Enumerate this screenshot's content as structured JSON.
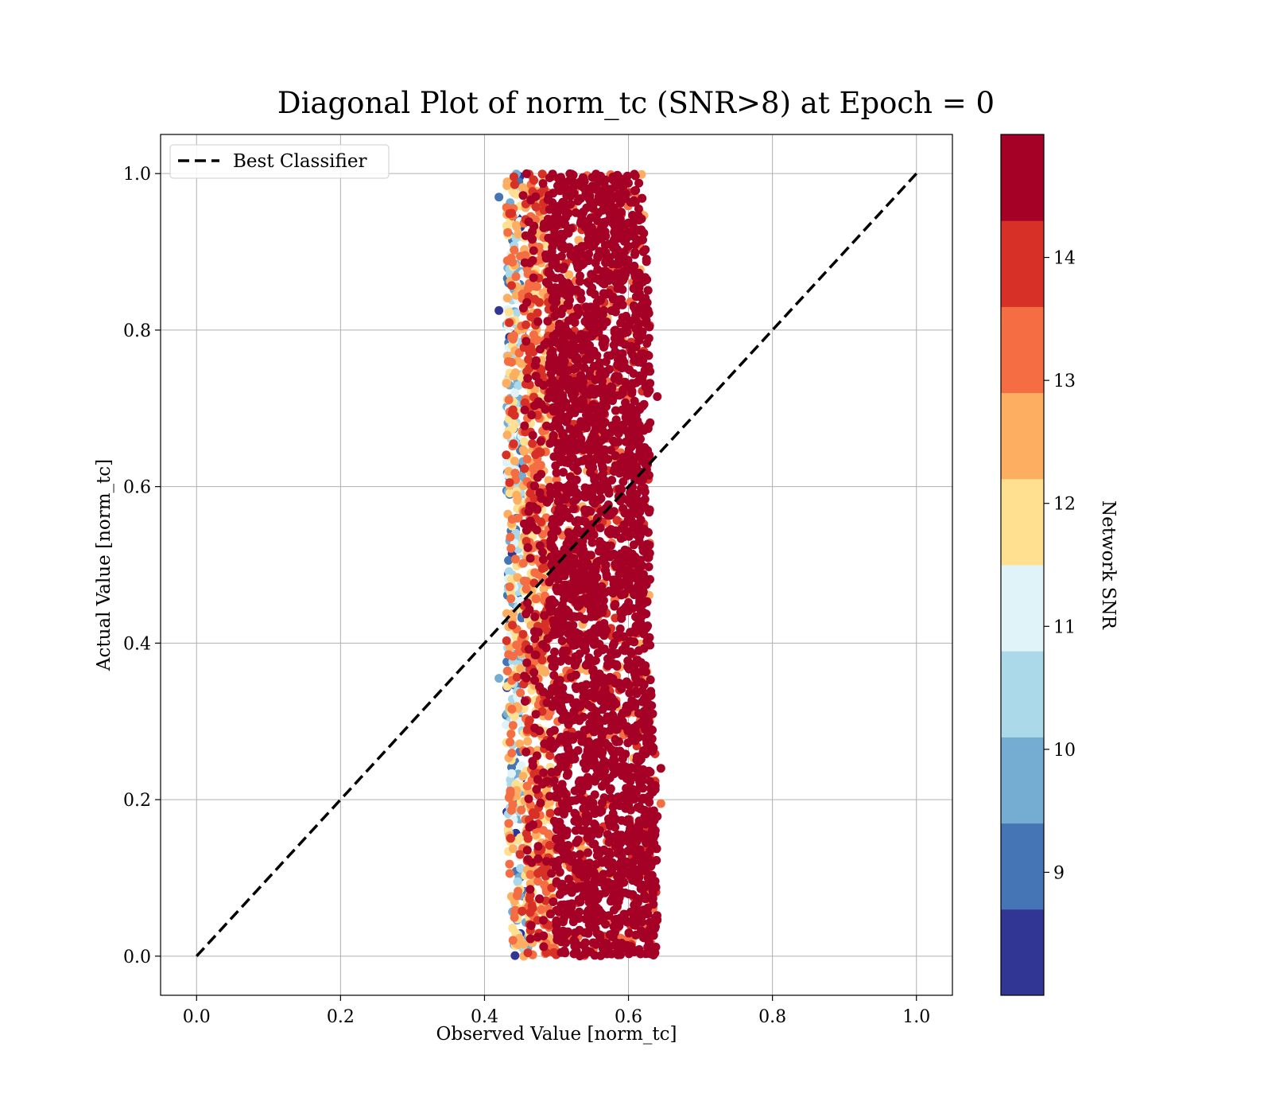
{
  "chart_data": {
    "type": "scatter",
    "title": "Diagonal Plot of norm_tc (SNR>8) at Epoch = 0",
    "xlabel": "Observed Value [norm_tc]",
    "ylabel": "Actual Value [norm_tc]",
    "xlim": [
      -0.05,
      1.05
    ],
    "ylim": [
      -0.05,
      1.05
    ],
    "xticks": [
      "0.0",
      "0.2",
      "0.4",
      "0.6",
      "0.8",
      "1.0"
    ],
    "yticks": [
      "0.0",
      "0.2",
      "0.4",
      "0.6",
      "0.8",
      "1.0"
    ],
    "grid": true,
    "legend": {
      "placement": "top-left",
      "entries": [
        {
          "label": "Best Classifier",
          "style": "dashed",
          "color": "#000000"
        }
      ]
    },
    "reference_line": {
      "name": "Best Classifier",
      "x": [
        0.0,
        1.0
      ],
      "y": [
        0.0,
        1.0
      ]
    },
    "scatter_cloud": {
      "description_x_range_by_y": [
        {
          "y": 1.0,
          "x_min": 0.43,
          "x_max": 0.62
        },
        {
          "y": 0.8,
          "x_min": 0.43,
          "x_max": 0.63
        },
        {
          "y": 0.6,
          "x_min": 0.43,
          "x_max": 0.63
        },
        {
          "y": 0.4,
          "x_min": 0.43,
          "x_max": 0.63
        },
        {
          "y": 0.2,
          "x_min": 0.43,
          "x_max": 0.64
        },
        {
          "y": 0.0,
          "x_min": 0.44,
          "x_max": 0.64
        }
      ],
      "core_x_range": [
        0.52,
        0.6
      ],
      "dominant_snr": 14.5
    },
    "colorbar": {
      "label": "Network SNR",
      "range": [
        8,
        15
      ],
      "ticks": [
        "9",
        "10",
        "11",
        "12",
        "13",
        "14"
      ],
      "tick_values": [
        9,
        10,
        11,
        12,
        13,
        14
      ],
      "colors": [
        "#313695",
        "#4575b4",
        "#74add1",
        "#abd9e9",
        "#e0f3f8",
        "#fee090",
        "#fdae61",
        "#f46d43",
        "#d73027",
        "#a50026"
      ]
    }
  }
}
